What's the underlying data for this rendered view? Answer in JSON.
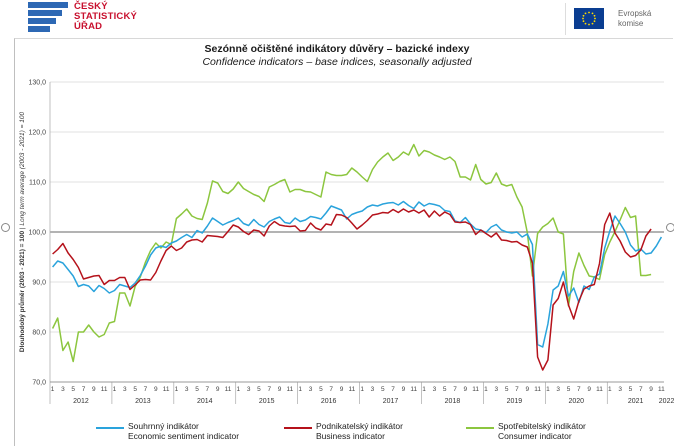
{
  "header": {
    "csu_logo_lines": [
      "ČESKÝ",
      "STATISTICKÝ",
      "ÚŘAD"
    ],
    "eu_logo_lines": [
      "Evropská",
      "komise"
    ]
  },
  "colors": {
    "economic": "#2aa3dc",
    "business": "#b5121b",
    "consumer": "#8cc63f",
    "grid": "#d9d9d9",
    "ref_line": "#9a9a9a"
  },
  "chart_data": {
    "type": "line",
    "title": "Sezónně očištěné indikátory důvěry – bazické indexy",
    "subtitle": "Confidence indicators – base indices, seasonally adjusted",
    "ylabel_main": "Dlouhodobý průměr (2003 - 2021) = 100",
    "ylabel_italic": "Long term average (2003 - 2021) = 100",
    "ylim": [
      70,
      130
    ],
    "yticks": [
      "70,0",
      "80,0",
      "90,0",
      "100,0",
      "110,0",
      "120,0",
      "130,0"
    ],
    "reference_line": 100,
    "x_start": "2012-01",
    "x_end": "2022-02",
    "month_ticks": [
      "1",
      "3",
      "5",
      "7",
      "9",
      "11"
    ],
    "years": [
      "2012",
      "2013",
      "2014",
      "2015",
      "2016",
      "2017",
      "2018",
      "2019",
      "2020",
      "2021",
      "2022"
    ],
    "series": [
      {
        "name_cz": "Souhrnný indikátor",
        "name_en": "Economic sentiment indicator",
        "key": "economic",
        "values": [
          93.0,
          94.2,
          93.8,
          92.5,
          91.2,
          89.1,
          89.5,
          89.2,
          88.1,
          89.3,
          88.7,
          87.8,
          88.3,
          89.5,
          89.2,
          88.9,
          89.8,
          91.3,
          93.2,
          95.4,
          96.8,
          97.2,
          96.9,
          97.8,
          98.2,
          98.9,
          99.5,
          98.9,
          100.3,
          99.8,
          101.2,
          102.8,
          102.1,
          101.4,
          101.9,
          102.3,
          102.8,
          101.7,
          101.3,
          102.5,
          101.5,
          101.0,
          102.1,
          102.6,
          103.0,
          101.9,
          101.7,
          102.8,
          102.1,
          102.4,
          103.1,
          102.9,
          102.6,
          103.8,
          105.2,
          104.8,
          104.4,
          102.6,
          103.5,
          103.9,
          104.2,
          105.0,
          105.4,
          105.2,
          105.6,
          105.8,
          105.9,
          105.4,
          106.1,
          105.3,
          104.7,
          106.0,
          105.2,
          105.7,
          105.5,
          105.2,
          104.3,
          104.1,
          102.2,
          101.9,
          102.9,
          101.6,
          100.6,
          100.4,
          99.9,
          101.0,
          101.5,
          100.4,
          100.0,
          99.8,
          100.0,
          99.0,
          99.6,
          97.5,
          77.5,
          77.0,
          81.6,
          88.4,
          89.2,
          92.1,
          87.2,
          88.8,
          85.9,
          89.2,
          88.5,
          91.0,
          91.6,
          96.8,
          100.2,
          103.2,
          101.7,
          100.0,
          97.4,
          96.2,
          96.6,
          95.6,
          95.8,
          97.2,
          99.0
        ]
      },
      {
        "name_cz": "Podnikatelský indikátor",
        "name_en": "Business indicator",
        "key": "business",
        "values": [
          95.6,
          96.5,
          97.7,
          95.8,
          94.5,
          92.9,
          90.6,
          90.9,
          91.2,
          91.3,
          89.5,
          90.3,
          90.3,
          90.9,
          90.9,
          88.5,
          89.4,
          90.4,
          90.5,
          90.4,
          91.9,
          94.2,
          96.3,
          97.2,
          96.3,
          96.8,
          98.0,
          98.4,
          98.5,
          98.0,
          99.3,
          99.2,
          99.1,
          98.9,
          100.1,
          101.4,
          101.0,
          100.1,
          99.5,
          100.4,
          100.2,
          99.2,
          101.2,
          102.1,
          101.4,
          101.2,
          101.1,
          101.2,
          100.2,
          100.3,
          101.8,
          100.8,
          100.4,
          101.6,
          101.4,
          103.5,
          103.4,
          102.9,
          101.8,
          100.6,
          101.4,
          102.3,
          103.4,
          103.6,
          103.9,
          103.8,
          104.5,
          103.9,
          104.6,
          104.0,
          104.4,
          103.8,
          104.4,
          103.0,
          104.2,
          103.2,
          104.0,
          103.5,
          102.0,
          101.9,
          102.0,
          101.5,
          99.5,
          100.4,
          99.7,
          99.0,
          99.8,
          98.4,
          98.3,
          98.0,
          98.1,
          97.4,
          97.0,
          93.8,
          75.0,
          72.4,
          74.4,
          85.4,
          86.7,
          90.0,
          85.4,
          82.6,
          86.2,
          88.6,
          89.2,
          89.5,
          93.7,
          101.5,
          103.8,
          99.8,
          98.2,
          96.0,
          95.0,
          95.3,
          96.4,
          99.2,
          100.6
        ]
      },
      {
        "name_cz": "Spotřebitelský indikátor",
        "name_en": "Consumer indicator",
        "key": "consumer",
        "values": [
          80.7,
          82.8,
          76.3,
          78.0,
          74.1,
          80.0,
          80.0,
          81.4,
          80.0,
          79.0,
          79.5,
          81.8,
          82.1,
          87.8,
          87.8,
          85.2,
          89.1,
          91.0,
          94.0,
          96.3,
          97.8,
          96.8,
          98.0,
          97.5,
          102.7,
          103.6,
          104.6,
          103.2,
          102.7,
          102.5,
          105.8,
          110.2,
          109.8,
          108.1,
          107.7,
          108.6,
          110.0,
          108.7,
          108.1,
          107.5,
          107.1,
          106.1,
          109.0,
          109.5,
          110.1,
          110.5,
          108.0,
          108.5,
          108.5,
          108.1,
          108.0,
          107.5,
          107.0,
          112.0,
          111.5,
          111.3,
          111.3,
          111.5,
          112.8,
          112.0,
          111.0,
          110.1,
          112.5,
          114.0,
          115.0,
          115.8,
          114.3,
          115.0,
          116.0,
          115.4,
          117.5,
          115.2,
          116.3,
          116.0,
          115.4,
          115.0,
          114.5,
          115.0,
          114.1,
          111.0,
          111.0,
          110.4,
          113.5,
          110.5,
          109.6,
          109.9,
          111.8,
          109.6,
          109.2,
          109.5,
          107.0,
          105.0,
          99.9,
          91.2,
          99.7,
          101.0,
          101.7,
          102.8,
          100.0,
          99.6,
          85.2,
          92.1,
          95.8,
          93.3,
          91.2,
          91.0,
          90.5,
          95.5,
          98.0,
          100.1,
          102.4,
          104.9,
          102.9,
          103.2,
          91.3,
          91.3,
          91.5
        ]
      }
    ]
  }
}
